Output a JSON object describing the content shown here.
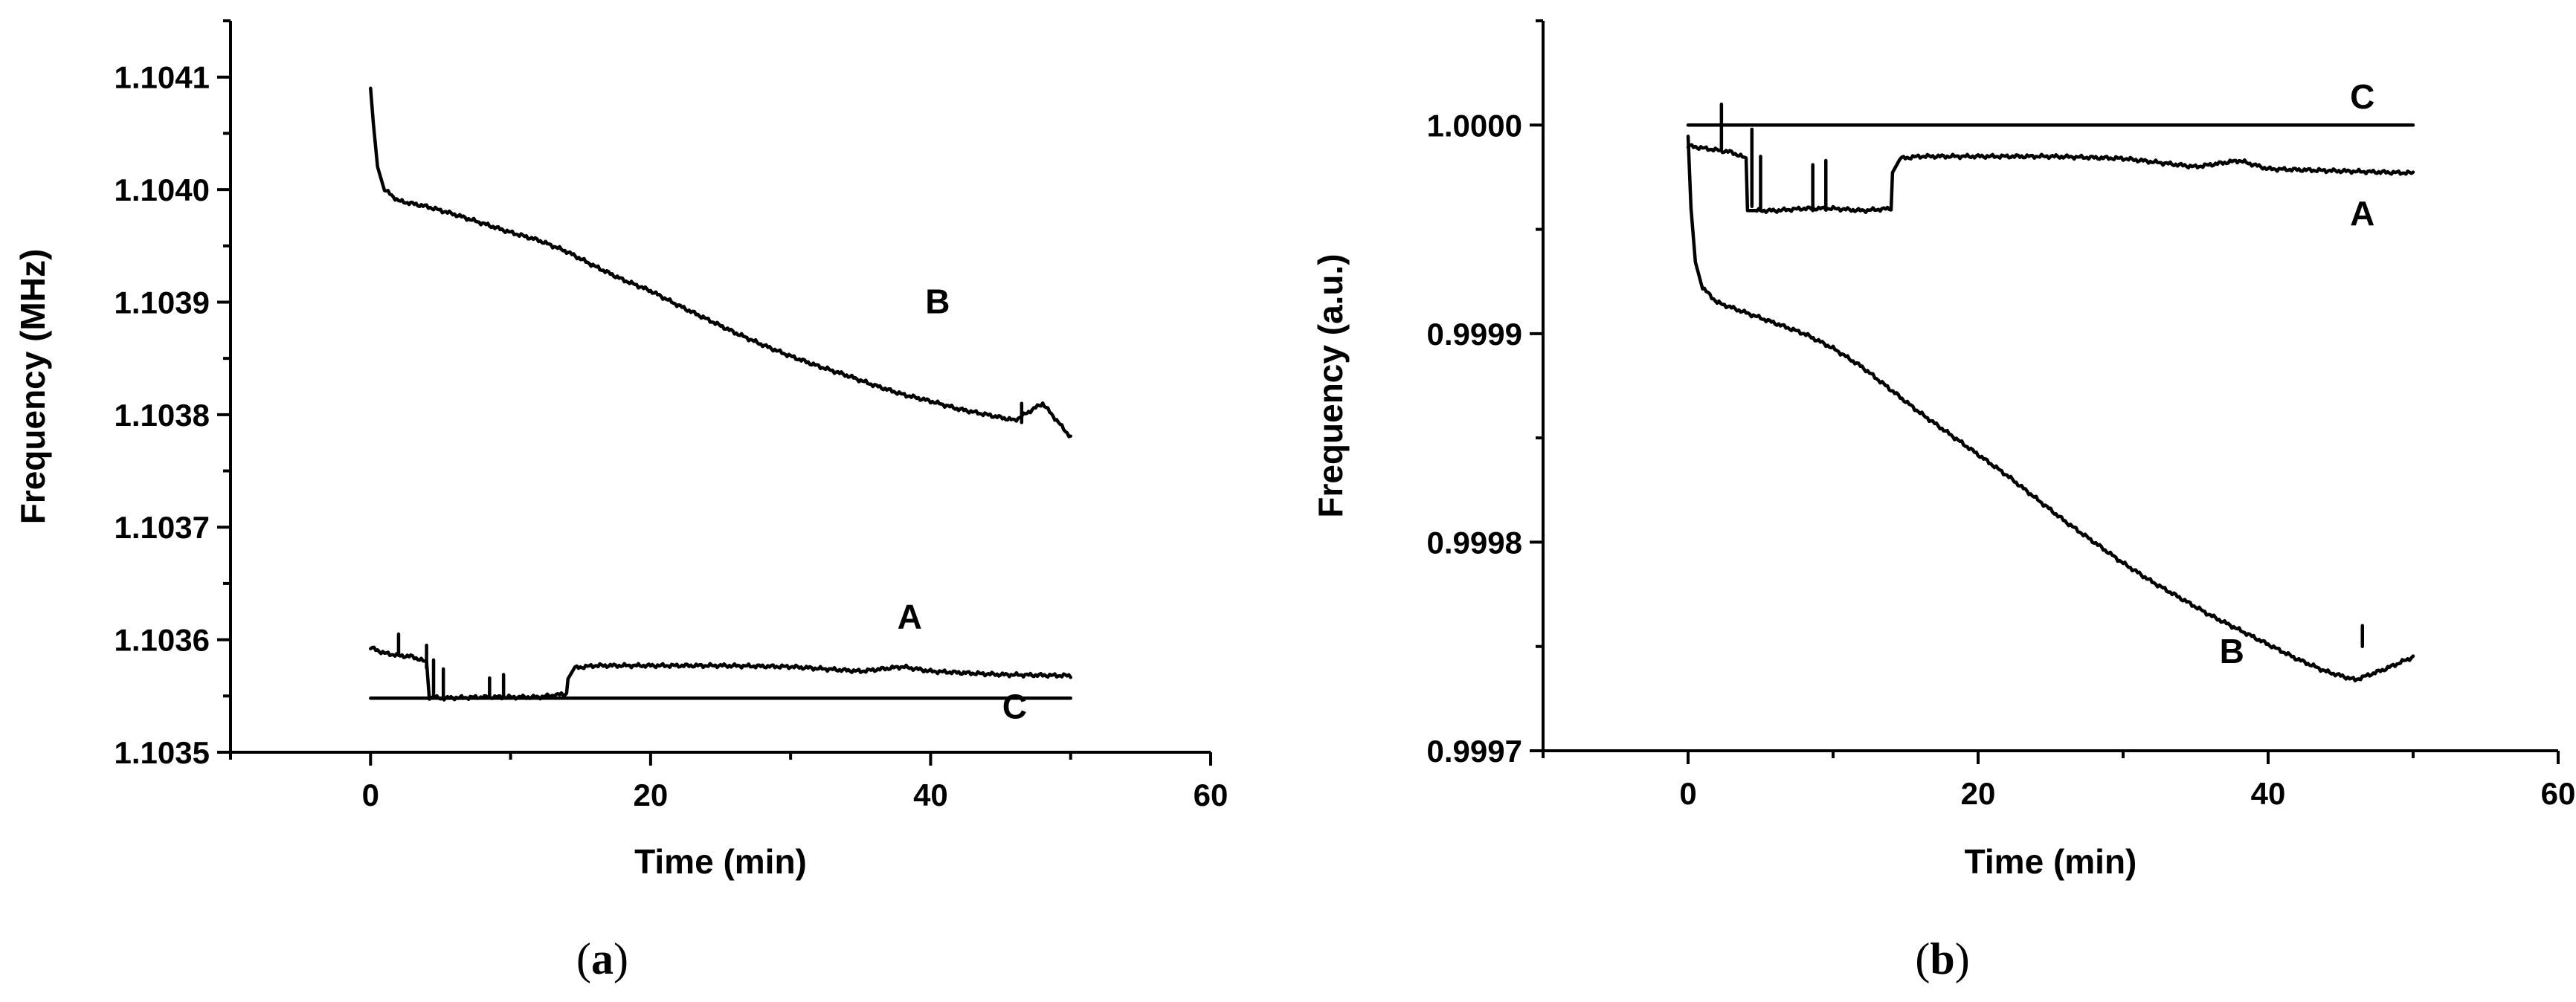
{
  "chart_data": [
    {
      "type": "line",
      "xlabel": "Time (min)",
      "ylabel": "Frequency (MHz)",
      "xlim": [
        -10,
        60
      ],
      "ylim": [
        1.1035,
        1.10415
      ],
      "xticks": [
        "0",
        "20",
        "40",
        "60"
      ],
      "yticks": [
        "1.1035",
        "1.1036",
        "1.1037",
        "1.1038",
        "1.1039",
        "1.1040",
        "1.1041"
      ],
      "caption": {
        "open": "(",
        "letter": "a",
        "close": ")"
      },
      "series": [
        {
          "name": "B",
          "x": [
            0,
            0.2,
            0.5,
            1,
            2,
            4,
            6,
            8,
            10,
            12,
            14,
            16,
            18,
            20,
            22,
            24,
            26,
            28,
            30,
            32,
            34,
            36,
            38,
            40,
            42,
            44,
            46,
            48,
            50
          ],
          "y": [
            1.10409,
            1.10406,
            1.10402,
            1.104,
            1.10399,
            1.103985,
            1.103978,
            1.10397,
            1.103962,
            1.103955,
            1.103945,
            1.103932,
            1.10392,
            1.10391,
            1.103897,
            1.103885,
            1.103873,
            1.103862,
            1.103852,
            1.103843,
            1.103835,
            1.103826,
            1.103818,
            1.103812,
            1.103805,
            1.1038,
            1.103795,
            1.10381,
            1.10378
          ]
        },
        {
          "name": "A",
          "x": [
            0,
            1,
            2,
            3,
            4,
            4.2,
            5,
            8,
            10,
            12,
            14,
            14.1,
            14.6,
            16,
            20,
            25,
            30,
            35,
            38,
            40,
            45,
            50
          ],
          "y": [
            1.103593,
            1.103588,
            1.103586,
            1.103585,
            1.10358,
            1.103549,
            1.103548,
            1.103549,
            1.103549,
            1.103549,
            1.103552,
            1.103566,
            1.103575,
            1.103577,
            1.103577,
            1.103577,
            1.103576,
            1.103572,
            1.103576,
            1.103572,
            1.103569,
            1.103568
          ]
        },
        {
          "name": "C",
          "x": [
            0,
            50
          ],
          "y": [
            1.103548,
            1.103548
          ]
        }
      ],
      "spikes": [
        {
          "x": 2.0,
          "y0": 1.103586,
          "y1": 1.103605
        },
        {
          "x": 4.0,
          "y0": 1.103575,
          "y1": 1.103595
        },
        {
          "x": 4.5,
          "y0": 1.10355,
          "y1": 1.103582
        },
        {
          "x": 5.2,
          "y0": 1.103549,
          "y1": 1.103574
        },
        {
          "x": 8.5,
          "y0": 1.103549,
          "y1": 1.103566
        },
        {
          "x": 9.5,
          "y0": 1.103549,
          "y1": 1.103569
        },
        {
          "x": 46.5,
          "y0": 1.103793,
          "y1": 1.10381
        }
      ],
      "labels": [
        {
          "text": "B",
          "x": 40.5,
          "y": 1.10389
        },
        {
          "text": "A",
          "x": 38.5,
          "y": 1.10361
        },
        {
          "text": "C",
          "x": 46.0,
          "y": 1.10353
        }
      ]
    },
    {
      "type": "line",
      "xlabel": "Time (min)",
      "ylabel": "Frequency (a.u.)",
      "xlim": [
        -10,
        60
      ],
      "ylim": [
        0.9997,
        1.00005
      ],
      "xticks": [
        "0",
        "20",
        "40",
        "60"
      ],
      "yticks": [
        "0.9997",
        "0.9998",
        "0.9999",
        "1.0000"
      ],
      "caption": {
        "open": "(",
        "letter": "b",
        "close": ")"
      },
      "series": [
        {
          "name": "C",
          "x": [
            0,
            50
          ],
          "y": [
            1.0,
            1.0
          ]
        },
        {
          "name": "A",
          "x": [
            0,
            1,
            2,
            3,
            4,
            4.1,
            4.5,
            6,
            8,
            10,
            12,
            14,
            14.1,
            14.6,
            16,
            20,
            25,
            30,
            35,
            38,
            40,
            45,
            50
          ],
          "y": [
            0.99999,
            0.999989,
            0.999988,
            0.999987,
            0.999984,
            0.99996,
            0.999959,
            0.999959,
            0.99996,
            0.99996,
            0.999959,
            0.99996,
            0.999977,
            0.999984,
            0.999985,
            0.999985,
            0.999985,
            0.999984,
            0.99998,
            0.999983,
            0.999979,
            0.999978,
            0.999977
          ]
        },
        {
          "name": "B",
          "x": [
            0,
            0.2,
            0.5,
            1,
            2,
            4,
            6,
            8,
            10,
            12,
            14,
            16,
            18,
            20,
            22,
            24,
            26,
            28,
            30,
            32,
            34,
            36,
            38,
            40,
            42,
            44,
            46,
            48,
            50
          ],
          "y": [
            0.999995,
            0.99996,
            0.999935,
            0.999922,
            0.999915,
            0.99991,
            0.999905,
            0.9999,
            0.999893,
            0.999884,
            0.999873,
            0.999862,
            0.999852,
            0.999842,
            0.999832,
            0.999821,
            0.99981,
            0.9998,
            0.99979,
            0.999781,
            0.999773,
            0.999765,
            0.999758,
            0.999751,
            0.999744,
            0.999738,
            0.999734,
            0.999739,
            0.999745
          ]
        }
      ],
      "spikes": [
        {
          "x": 2.3,
          "y0": 0.999988,
          "y1": 1.00001
        },
        {
          "x": 4.4,
          "y0": 0.999961,
          "y1": 0.999998
        },
        {
          "x": 5.0,
          "y0": 0.999959,
          "y1": 0.999985
        },
        {
          "x": 8.6,
          "y0": 0.999959,
          "y1": 0.999981
        },
        {
          "x": 9.5,
          "y0": 0.99996,
          "y1": 0.999983
        },
        {
          "x": 46.5,
          "y0": 0.99975,
          "y1": 0.99976
        }
      ],
      "labels": [
        {
          "text": "C",
          "x": 46.5,
          "y": 1.000008
        },
        {
          "text": "A",
          "x": 46.5,
          "y": 0.999952
        },
        {
          "text": "B",
          "x": 37.5,
          "y": 0.999742
        }
      ]
    }
  ]
}
